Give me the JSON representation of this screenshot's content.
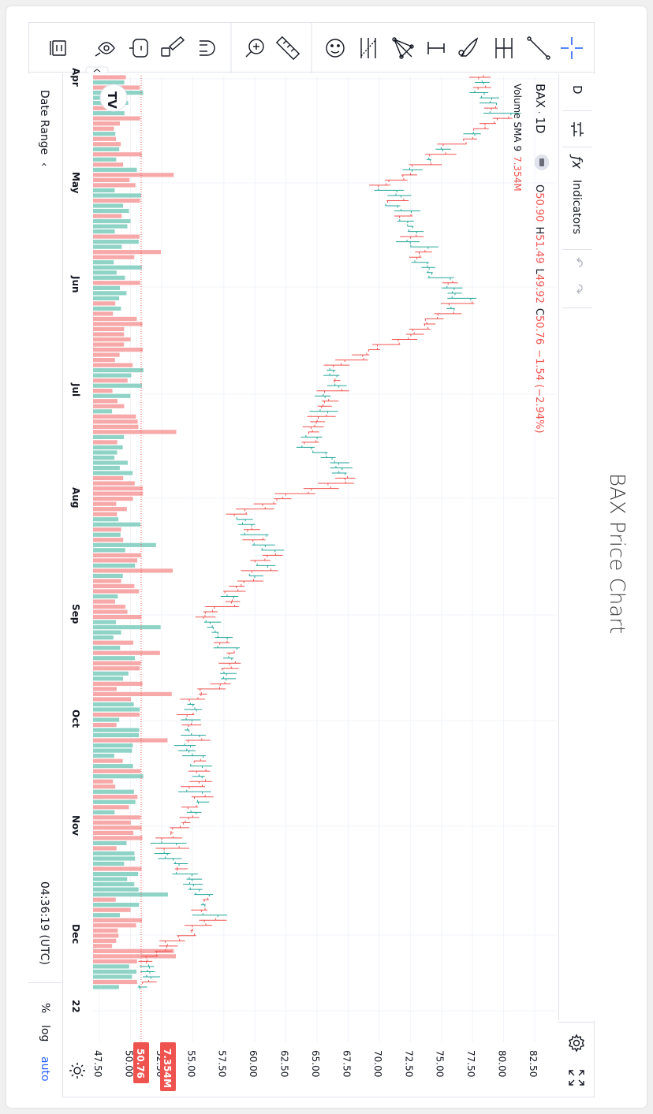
{
  "page_title": "BAX Price Chart",
  "toolbar": {
    "tools": [
      "crosshair-icon",
      "trend-line-icon",
      "pitchfork-icon",
      "brush-icon",
      "text-icon",
      "pattern-icon",
      "fib-icon",
      "emoji-icon",
      "ruler-icon",
      "zoom-in-icon",
      "magnet-icon",
      "lock-icon",
      "eye-icon",
      "trash-icon"
    ]
  },
  "top_toolbar": {
    "interval": "D",
    "indicators_label": "Indicators",
    "icons": [
      "bar-style-icon",
      "function-icon",
      "undo-icon",
      "redo-icon",
      "settings-icon",
      "fullscreen-icon"
    ]
  },
  "legend": {
    "symbol": "BAX",
    "separator": "·",
    "interval": "1D",
    "open_label": "O",
    "open": "50.90",
    "high_label": "H",
    "high": "51.49",
    "low_label": "L",
    "low": "49.92",
    "close_label": "C",
    "close": "50.76",
    "change": "−1.54 (−2.94%)",
    "volume_name": "Volume SMA 9",
    "volume_value": "7.354M"
  },
  "bottom_bar": {
    "date_range_label": "Date Range",
    "time": "04:36:19 (UTC)",
    "percent_label": "%",
    "log_label": "log",
    "auto_label": "auto"
  },
  "price_badge": "50.76",
  "volume_badge": "7.354M",
  "colors": {
    "up": "#26a69a",
    "down": "#ef5350",
    "up_volume": "#8fd3c6",
    "down_volume": "#f7a8a8"
  },
  "chart_data": {
    "type": "ohlc",
    "symbol": "BAX",
    "interval": "1D",
    "price_axis": {
      "ticks": [
        "47.50",
        "50.00",
        "52.50",
        "55.00",
        "57.50",
        "60.00",
        "62.50",
        "65.00",
        "67.50",
        "70.00",
        "72.50",
        "75.00",
        "77.50",
        "80.00",
        "82.50"
      ],
      "range": [
        46.5,
        83.5
      ]
    },
    "time_axis": {
      "ticks": [
        "Apr",
        "May",
        "Jun",
        "Jul",
        "Aug",
        "Sep",
        "Oct",
        "Nov",
        "Dec",
        "22"
      ]
    },
    "last_close": 50.76,
    "volume_sma": "7.354M",
    "approx_close_path": [
      {
        "month": "Apr",
        "close": 78.0
      },
      {
        "month": "Apr",
        "close": 80.0
      },
      {
        "month": "Apr",
        "close": 75.0
      },
      {
        "month": "May",
        "close": 70.5
      },
      {
        "month": "May",
        "close": 72.5
      },
      {
        "month": "May",
        "close": 73.5
      },
      {
        "month": "Jun",
        "close": 77.0
      },
      {
        "month": "Jun",
        "close": 72.5
      },
      {
        "month": "Jun",
        "close": 66.5
      },
      {
        "month": "Jul",
        "close": 65.5
      },
      {
        "month": "Jul",
        "close": 64.5
      },
      {
        "month": "Jul",
        "close": 67.0
      },
      {
        "month": "Aug",
        "close": 58.5
      },
      {
        "month": "Aug",
        "close": 61.5
      },
      {
        "month": "Aug",
        "close": 58.5
      },
      {
        "month": "Sep",
        "close": 56.0
      },
      {
        "month": "Sep",
        "close": 59.0
      },
      {
        "month": "Sep",
        "close": 55.5
      },
      {
        "month": "Oct",
        "close": 55.0
      },
      {
        "month": "Oct",
        "close": 56.0
      },
      {
        "month": "Oct",
        "close": 55.0
      },
      {
        "month": "Nov",
        "close": 53.0
      },
      {
        "month": "Nov",
        "close": 55.0
      },
      {
        "month": "Nov",
        "close": 56.5
      },
      {
        "month": "Dec",
        "close": 51.5
      },
      {
        "month": "Dec",
        "close": 50.8
      }
    ]
  }
}
